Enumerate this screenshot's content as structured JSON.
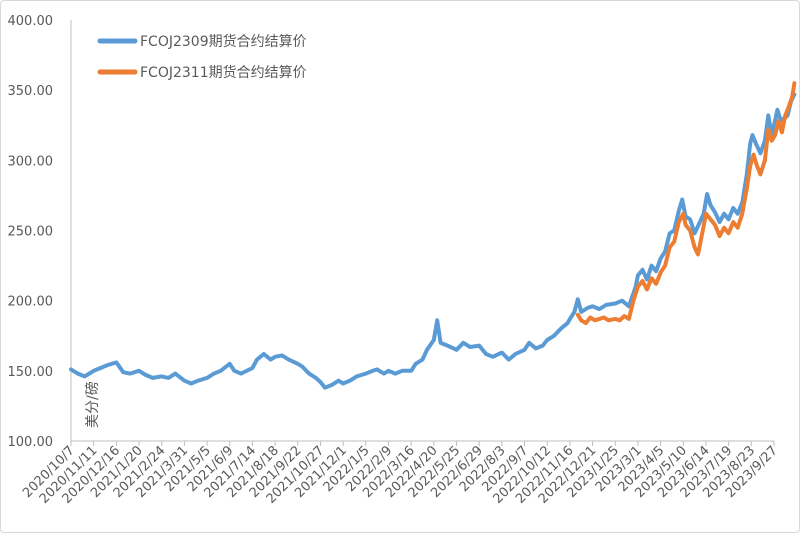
{
  "chart_data": {
    "type": "line",
    "ylabel": "美分/磅",
    "ylim": [
      100,
      400
    ],
    "y_ticks": [
      "100.00",
      "150.00",
      "200.00",
      "250.00",
      "300.00",
      "350.00",
      "400.00"
    ],
    "x_tick_labels": [
      "2020/10/7",
      "2020/11/11",
      "2020/12/16",
      "2021/1/20",
      "2021/2/24",
      "2021/3/31",
      "2021/5/5",
      "2021/6/9",
      "2021/7/14",
      "2021/8/18",
      "2021/9/22",
      "2021/10/27",
      "2021/12/1",
      "2022/1/5",
      "2022/2/9",
      "2022/3/16",
      "2022/4/20",
      "2022/5/25",
      "2022/6/29",
      "2022/8/3",
      "2022/9/7",
      "2022/10/12",
      "2022/11/16",
      "2022/12/21",
      "2023/1/25",
      "2023/3/1",
      "2023/4/5",
      "2023/5/10",
      "2023/6/14",
      "2023/7/19",
      "2023/8/23",
      "2023/9/27"
    ],
    "grid": false,
    "legend_position": "top-left",
    "series": [
      {
        "name": "FCOJ2309期货合约结算价",
        "color": "#5b9bd5",
        "points": [
          [
            0,
            151
          ],
          [
            0.3,
            148
          ],
          [
            0.6,
            146
          ],
          [
            1.0,
            150
          ],
          [
            1.3,
            152
          ],
          [
            1.6,
            154
          ],
          [
            2.0,
            156
          ],
          [
            2.3,
            149
          ],
          [
            2.6,
            148
          ],
          [
            3.0,
            150
          ],
          [
            3.3,
            147
          ],
          [
            3.6,
            145
          ],
          [
            4.0,
            146
          ],
          [
            4.3,
            145
          ],
          [
            4.6,
            148
          ],
          [
            5.0,
            143
          ],
          [
            5.3,
            141
          ],
          [
            5.6,
            143
          ],
          [
            6.0,
            145
          ],
          [
            6.3,
            148
          ],
          [
            6.6,
            150
          ],
          [
            7.0,
            155
          ],
          [
            7.2,
            150
          ],
          [
            7.5,
            148
          ],
          [
            8.0,
            152
          ],
          [
            8.2,
            158
          ],
          [
            8.5,
            162
          ],
          [
            8.8,
            158
          ],
          [
            9.0,
            160
          ],
          [
            9.3,
            161
          ],
          [
            9.6,
            158
          ],
          [
            10.0,
            155
          ],
          [
            10.2,
            153
          ],
          [
            10.5,
            148
          ],
          [
            10.8,
            145
          ],
          [
            11.0,
            142
          ],
          [
            11.2,
            138
          ],
          [
            11.5,
            140
          ],
          [
            11.8,
            143
          ],
          [
            12.0,
            141
          ],
          [
            12.3,
            143
          ],
          [
            12.6,
            146
          ],
          [
            13.0,
            148
          ],
          [
            13.3,
            150
          ],
          [
            13.5,
            151
          ],
          [
            13.8,
            148
          ],
          [
            14.0,
            150
          ],
          [
            14.3,
            148
          ],
          [
            14.6,
            150
          ],
          [
            15.0,
            150
          ],
          [
            15.2,
            155
          ],
          [
            15.5,
            158
          ],
          [
            15.7,
            165
          ],
          [
            16.0,
            172
          ],
          [
            16.15,
            186
          ],
          [
            16.3,
            170
          ],
          [
            16.6,
            168
          ],
          [
            17.0,
            165
          ],
          [
            17.3,
            170
          ],
          [
            17.6,
            167
          ],
          [
            18.0,
            168
          ],
          [
            18.3,
            162
          ],
          [
            18.6,
            160
          ],
          [
            19.0,
            163
          ],
          [
            19.3,
            158
          ],
          [
            19.6,
            162
          ],
          [
            20.0,
            165
          ],
          [
            20.2,
            170
          ],
          [
            20.5,
            166
          ],
          [
            20.8,
            168
          ],
          [
            21.0,
            172
          ],
          [
            21.3,
            175
          ],
          [
            21.6,
            180
          ],
          [
            21.9,
            184
          ],
          [
            22.0,
            187
          ],
          [
            22.2,
            192
          ],
          [
            22.35,
            201
          ],
          [
            22.5,
            192
          ],
          [
            22.8,
            195
          ],
          [
            23.0,
            196
          ],
          [
            23.3,
            194
          ],
          [
            23.6,
            197
          ],
          [
            24.0,
            198
          ],
          [
            24.3,
            200
          ],
          [
            24.6,
            196
          ],
          [
            24.9,
            210
          ],
          [
            25.0,
            218
          ],
          [
            25.2,
            222
          ],
          [
            25.4,
            215
          ],
          [
            25.6,
            225
          ],
          [
            25.8,
            221
          ],
          [
            26.0,
            230
          ],
          [
            26.2,
            235
          ],
          [
            26.4,
            248
          ],
          [
            26.6,
            250
          ],
          [
            26.8,
            264
          ],
          [
            26.95,
            272
          ],
          [
            27.1,
            260
          ],
          [
            27.3,
            258
          ],
          [
            27.5,
            248
          ],
          [
            27.7,
            255
          ],
          [
            27.9,
            262
          ],
          [
            28.05,
            276
          ],
          [
            28.2,
            268
          ],
          [
            28.4,
            263
          ],
          [
            28.6,
            256
          ],
          [
            28.8,
            262
          ],
          [
            29.0,
            258
          ],
          [
            29.2,
            266
          ],
          [
            29.4,
            262
          ],
          [
            29.6,
            270
          ],
          [
            29.8,
            290
          ],
          [
            29.95,
            312
          ],
          [
            30.05,
            318
          ],
          [
            30.2,
            312
          ],
          [
            30.4,
            305
          ],
          [
            30.6,
            314
          ],
          [
            30.75,
            332
          ],
          [
            30.9,
            318
          ],
          [
            31.0,
            325
          ],
          [
            31.15,
            336
          ],
          [
            31.3,
            328
          ],
          [
            31.45,
            330
          ],
          [
            31.6,
            332
          ],
          [
            31.75,
            342
          ],
          [
            31.9,
            347
          ]
        ]
      },
      {
        "name": "FCOJ2311期货合约结算价",
        "color": "#ed7d31",
        "points": [
          [
            22.35,
            190
          ],
          [
            22.5,
            186
          ],
          [
            22.7,
            184
          ],
          [
            22.9,
            188
          ],
          [
            23.1,
            186
          ],
          [
            23.3,
            187
          ],
          [
            23.5,
            188
          ],
          [
            23.7,
            186
          ],
          [
            24.0,
            187
          ],
          [
            24.2,
            186
          ],
          [
            24.4,
            189
          ],
          [
            24.6,
            187
          ],
          [
            24.8,
            200
          ],
          [
            25.0,
            210
          ],
          [
            25.2,
            214
          ],
          [
            25.4,
            208
          ],
          [
            25.6,
            216
          ],
          [
            25.8,
            212
          ],
          [
            26.0,
            220
          ],
          [
            26.2,
            225
          ],
          [
            26.4,
            238
          ],
          [
            26.6,
            242
          ],
          [
            26.8,
            256
          ],
          [
            27.0,
            262
          ],
          [
            27.1,
            254
          ],
          [
            27.3,
            250
          ],
          [
            27.5,
            238
          ],
          [
            27.65,
            233
          ],
          [
            27.8,
            245
          ],
          [
            28.0,
            262
          ],
          [
            28.2,
            258
          ],
          [
            28.4,
            254
          ],
          [
            28.6,
            246
          ],
          [
            28.8,
            252
          ],
          [
            29.0,
            248
          ],
          [
            29.2,
            256
          ],
          [
            29.4,
            252
          ],
          [
            29.6,
            262
          ],
          [
            29.8,
            280
          ],
          [
            29.95,
            296
          ],
          [
            30.1,
            304
          ],
          [
            30.25,
            296
          ],
          [
            30.4,
            290
          ],
          [
            30.6,
            300
          ],
          [
            30.75,
            322
          ],
          [
            30.9,
            314
          ],
          [
            31.05,
            318
          ],
          [
            31.2,
            328
          ],
          [
            31.35,
            320
          ],
          [
            31.5,
            332
          ],
          [
            31.65,
            338
          ],
          [
            31.8,
            345
          ],
          [
            31.9,
            355
          ]
        ]
      }
    ]
  }
}
